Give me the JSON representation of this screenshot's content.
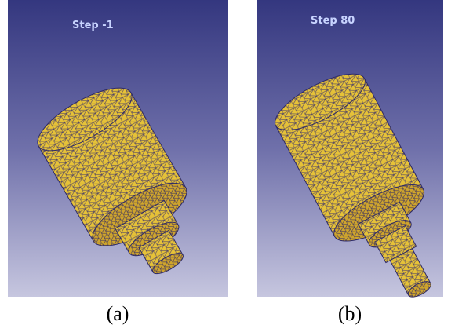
{
  "panels": [
    {
      "step_label": "Step -1",
      "caption": "(a)"
    },
    {
      "step_label": "Step 80",
      "caption": "(b)"
    }
  ]
}
